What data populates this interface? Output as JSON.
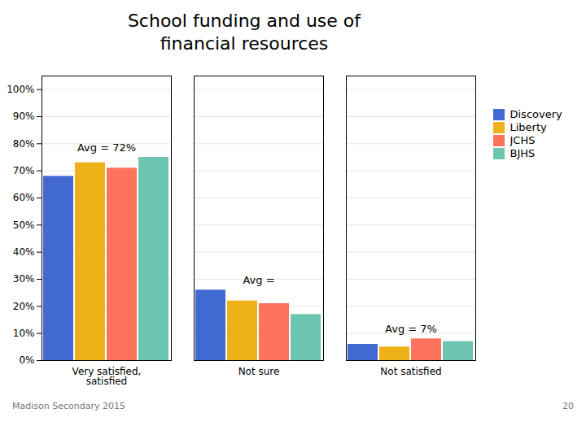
{
  "chart_data": {
    "type": "bar",
    "title": "School funding and use of\nfinancial resources",
    "categories": [
      "Very satisfied,\nsatisfied",
      "Not sure",
      "Not satisfied"
    ],
    "series": [
      {
        "name": "Discovery",
        "values": [
          68,
          26,
          6
        ]
      },
      {
        "name": "Liberty",
        "values": [
          73,
          22,
          5
        ]
      },
      {
        "name": "JCHS",
        "values": [
          71,
          21,
          8
        ]
      },
      {
        "name": "BJHS",
        "values": [
          75,
          17,
          7
        ]
      }
    ],
    "ylim": [
      0,
      105
    ],
    "yticks": [
      {
        "value": 0,
        "label": "0%"
      },
      {
        "value": 10,
        "label": "10%"
      },
      {
        "value": 20,
        "label": "20%"
      },
      {
        "value": 30,
        "label": "30%"
      },
      {
        "value": 40,
        "label": "40%"
      },
      {
        "value": 50,
        "label": "50%"
      },
      {
        "value": 60,
        "label": "60%"
      },
      {
        "value": 70,
        "label": "70%"
      },
      {
        "value": 80,
        "label": "80%"
      },
      {
        "value": 90,
        "label": "90%"
      },
      {
        "value": 100,
        "label": "100%"
      }
    ],
    "grid": true,
    "legend": "right",
    "annotations": [
      "Avg = 72%",
      "Avg =",
      "Avg = 7%"
    ],
    "footer": [
      "Madison Secondary 2015",
      "20"
    ]
  }
}
